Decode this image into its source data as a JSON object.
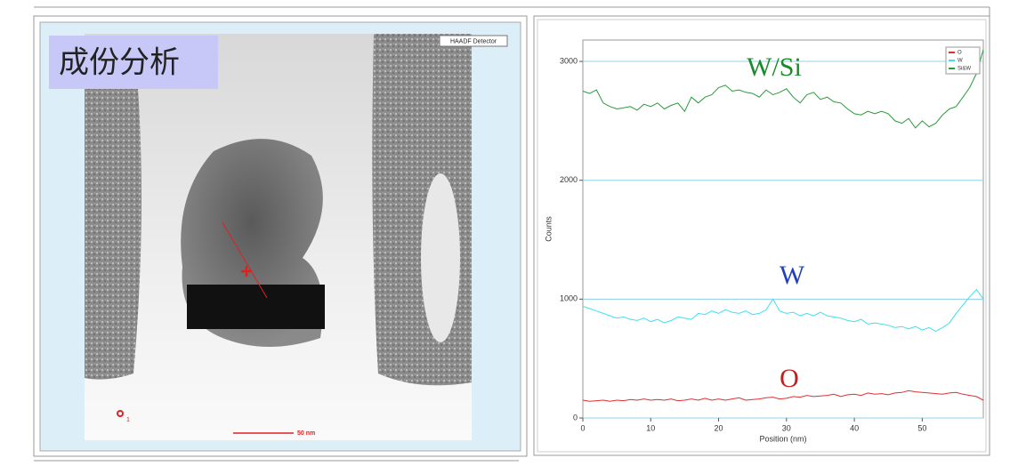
{
  "image": {
    "label": "成份分析",
    "detector": "HAADF Detector",
    "scale_bar": "50 nm",
    "marker": "1"
  },
  "chart_data": {
    "type": "line",
    "x_label": "Position (nm)",
    "y_label": "Counts",
    "x": [
      0,
      1,
      2,
      3,
      4,
      5,
      6,
      7,
      8,
      9,
      10,
      11,
      12,
      13,
      14,
      15,
      16,
      17,
      18,
      19,
      20,
      21,
      22,
      23,
      24,
      25,
      26,
      27,
      28,
      29,
      30,
      31,
      32,
      33,
      34,
      35,
      36,
      37,
      38,
      39,
      40,
      41,
      42,
      43,
      44,
      45,
      46,
      47,
      48,
      49,
      50,
      51,
      52,
      53,
      54,
      55,
      56,
      57,
      58,
      59
    ],
    "series": [
      {
        "name": "O",
        "color": "#e03030",
        "values": [
          150,
          140,
          145,
          150,
          140,
          150,
          145,
          155,
          150,
          160,
          150,
          155,
          150,
          160,
          145,
          150,
          160,
          150,
          165,
          150,
          160,
          150,
          160,
          170,
          150,
          155,
          160,
          170,
          175,
          160,
          165,
          180,
          175,
          190,
          180,
          185,
          190,
          200,
          180,
          195,
          200,
          190,
          210,
          200,
          205,
          195,
          210,
          215,
          230,
          220,
          215,
          210,
          205,
          200,
          210,
          215,
          200,
          190,
          180,
          150
        ]
      },
      {
        "name": "W",
        "color": "#40e0f0",
        "values": [
          940,
          920,
          900,
          880,
          860,
          840,
          850,
          830,
          820,
          840,
          810,
          830,
          800,
          820,
          850,
          840,
          830,
          880,
          870,
          900,
          880,
          910,
          890,
          880,
          900,
          870,
          880,
          910,
          1000,
          900,
          880,
          890,
          860,
          880,
          860,
          890,
          860,
          850,
          840,
          820,
          810,
          830,
          790,
          800,
          790,
          780,
          760,
          770,
          750,
          770,
          740,
          760,
          730,
          760,
          800,
          880,
          950,
          1020,
          1080,
          1000
        ]
      },
      {
        "name": "Si&W",
        "color": "#2a9a3a",
        "values": [
          2750,
          2730,
          2760,
          2650,
          2620,
          2600,
          2610,
          2620,
          2590,
          2640,
          2620,
          2650,
          2600,
          2630,
          2650,
          2580,
          2700,
          2650,
          2700,
          2720,
          2780,
          2800,
          2750,
          2760,
          2740,
          2730,
          2700,
          2760,
          2720,
          2740,
          2770,
          2700,
          2650,
          2720,
          2740,
          2680,
          2700,
          2660,
          2650,
          2600,
          2560,
          2550,
          2580,
          2560,
          2580,
          2560,
          2500,
          2480,
          2520,
          2440,
          2500,
          2450,
          2480,
          2550,
          2600,
          2620,
          2700,
          2780,
          2900,
          3100
        ]
      }
    ],
    "annotations": [
      {
        "text": "W/Si",
        "color": "#1a8a2a"
      },
      {
        "text": "W",
        "color": "#2040c0"
      },
      {
        "text": "O",
        "color": "#c02020"
      }
    ],
    "xlim": [
      0,
      59
    ],
    "ylim": [
      0,
      3180
    ],
    "xticks": [
      0,
      10,
      20,
      30,
      40,
      50
    ],
    "yticks": [
      0,
      1000,
      2000,
      3000
    ],
    "grid": true,
    "legend": "top-right"
  }
}
